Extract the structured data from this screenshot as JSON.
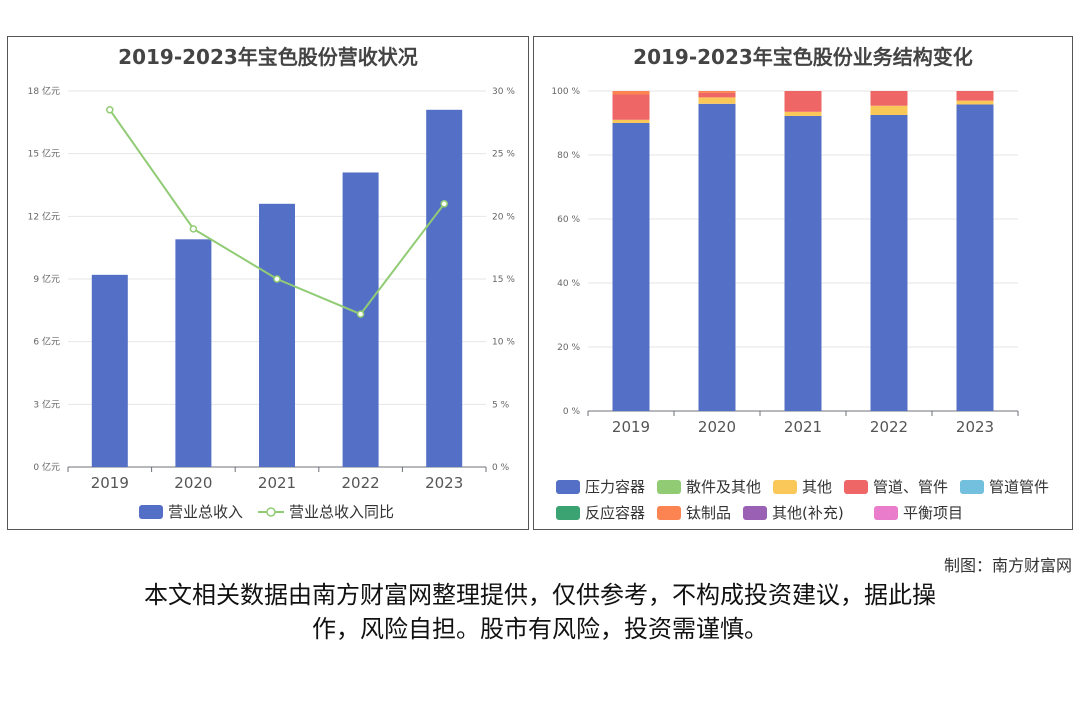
{
  "charts": {
    "revenue": {
      "title": "2019-2023年宝色股份营收状况"
    },
    "structure": {
      "title": "2019-2023年宝色股份业务结构变化"
    }
  },
  "footer": {
    "credit": "制图：南方财富网",
    "disclaimer_line1": "本文相关数据由南方财富网整理提供，仅供参考，不构成投资建议，据此操",
    "disclaimer_line2": "作，风险自担。股市有风险，投资需谨慎。"
  },
  "chart_data": [
    {
      "type": "bar",
      "title": "2019-2023年宝色股份营收状况",
      "categories": [
        "2019",
        "2020",
        "2021",
        "2022",
        "2023"
      ],
      "y_ticks": [
        "0 亿元",
        "3 亿元",
        "6 亿元",
        "9 亿元",
        "12 亿元",
        "15 亿元",
        "18 亿元"
      ],
      "y2_ticks": [
        "0 %",
        "5 %",
        "10 %",
        "15 %",
        "20 %",
        "25 %",
        "30 %"
      ],
      "ylim": [
        0,
        18
      ],
      "y2lim": [
        0,
        30
      ],
      "series": [
        {
          "name": "营业总收入",
          "type": "bar",
          "color": "#5470c6",
          "values": [
            9.2,
            10.9,
            12.6,
            14.1,
            17.1
          ]
        },
        {
          "name": "营业总收入同比",
          "type": "line",
          "axis": "right",
          "color": "#91cc75",
          "values": [
            28.5,
            19.0,
            15.0,
            12.2,
            21.0
          ]
        }
      ],
      "legend": "bottom"
    },
    {
      "type": "bar",
      "stacked": true,
      "title": "2019-2023年宝色股份业务结构变化",
      "categories": [
        "2019",
        "2020",
        "2021",
        "2022",
        "2023"
      ],
      "y_ticks": [
        "0 %",
        "20 %",
        "40 %",
        "60 %",
        "80 %",
        "100 %"
      ],
      "ylim": [
        0,
        100
      ],
      "series": [
        {
          "name": "压力容器",
          "color": "#5470c6",
          "values": [
            90.0,
            96.0,
            92.2,
            92.5,
            95.8
          ]
        },
        {
          "name": "散件及其他",
          "color": "#91cc75",
          "values": [
            0,
            0,
            0,
            0,
            0
          ]
        },
        {
          "name": "其他",
          "color": "#fac858",
          "values": [
            1.0,
            2.0,
            1.3,
            2.9,
            1.2
          ]
        },
        {
          "name": "管道、管件",
          "color": "#ee6666",
          "values": [
            7.9,
            1.4,
            6.5,
            4.6,
            3.0
          ]
        },
        {
          "name": "管道管件",
          "color": "#73c0de",
          "values": [
            0,
            0,
            0,
            0,
            0
          ]
        },
        {
          "name": "反应容器",
          "color": "#3ba272",
          "values": [
            0,
            0,
            0,
            0,
            0
          ]
        },
        {
          "name": "钛制品",
          "color": "#fc8452",
          "values": [
            1.1,
            0.6,
            0,
            0,
            0
          ]
        },
        {
          "name": "其他(补充)",
          "color": "#9a60b4",
          "values": [
            0,
            0,
            0,
            0,
            0
          ]
        },
        {
          "name": "平衡项目",
          "color": "#ea7ccc",
          "values": [
            0,
            0,
            0,
            0,
            0
          ]
        }
      ],
      "legend": "bottom"
    }
  ]
}
